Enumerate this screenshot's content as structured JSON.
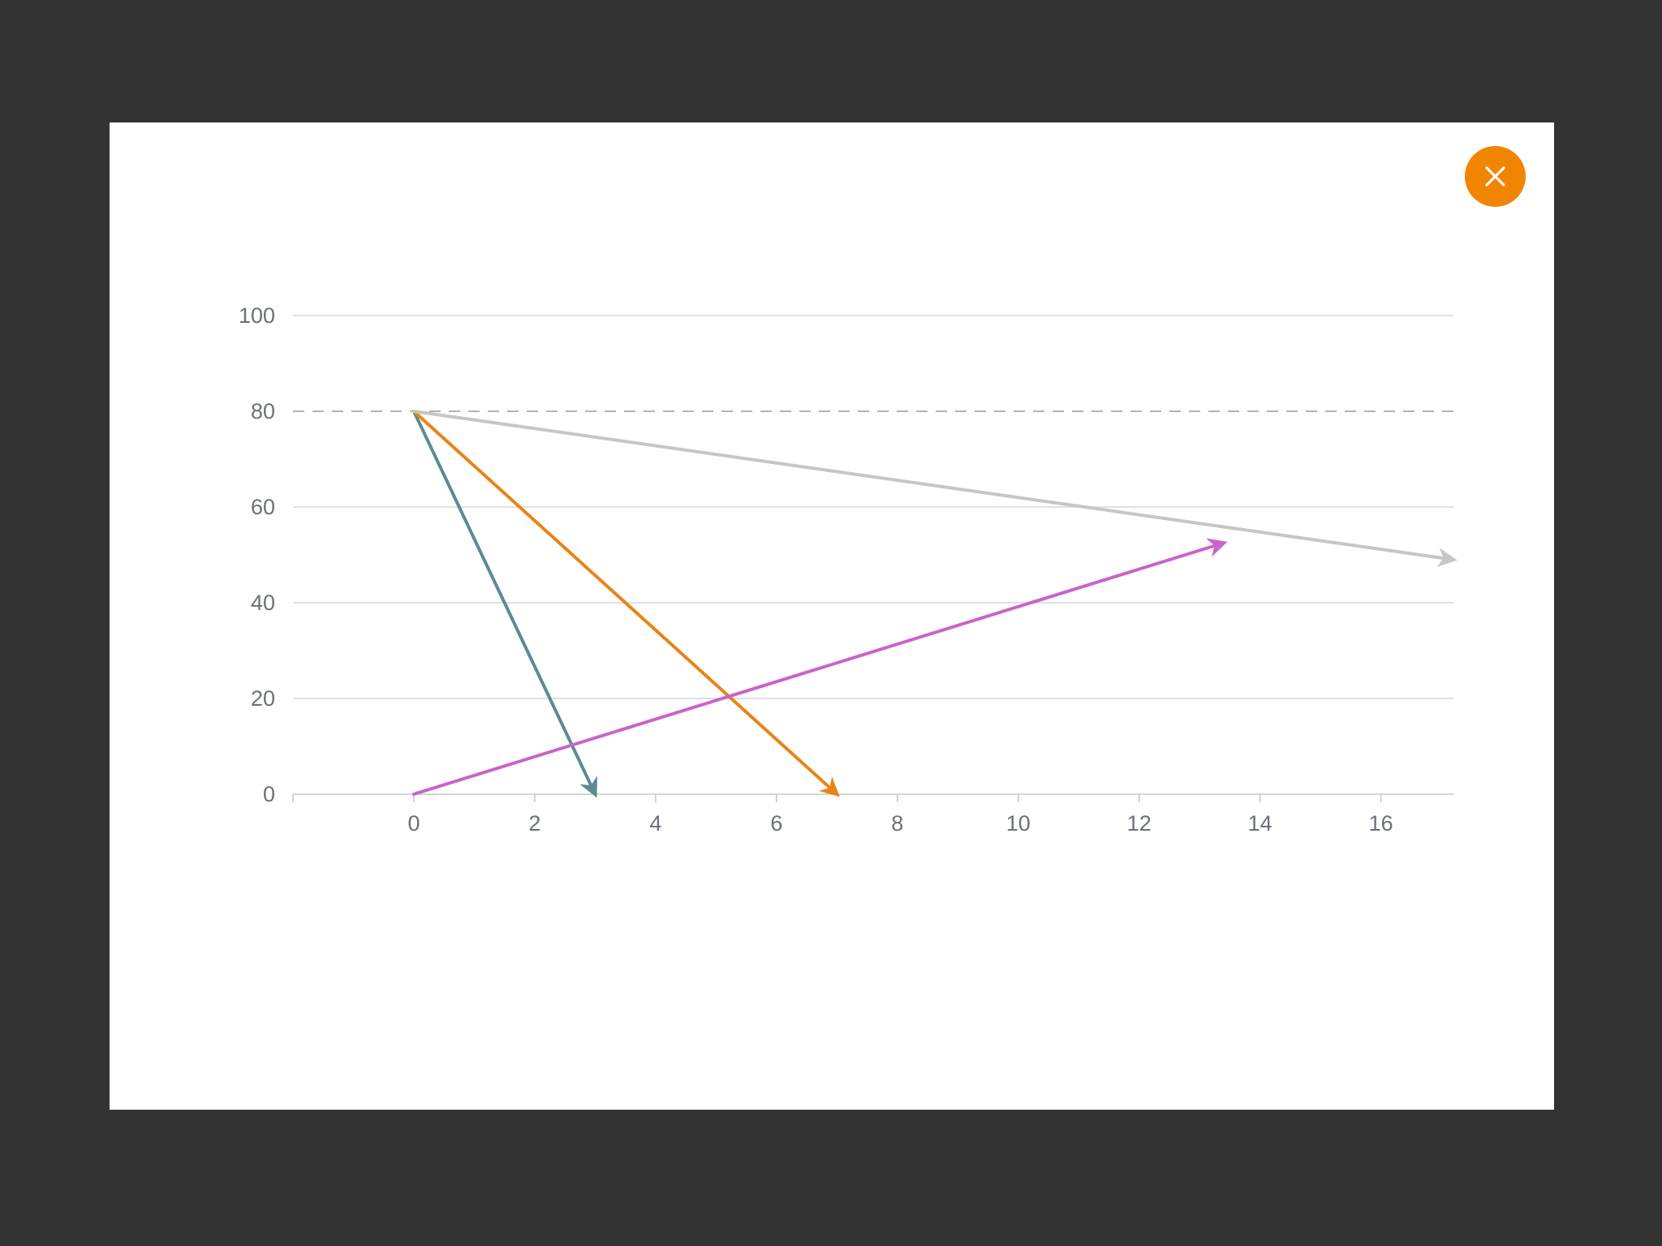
{
  "close_button": {
    "color": "#f28500",
    "icon": "close-icon"
  },
  "chart_data": {
    "type": "line",
    "x_ticks": [
      0,
      2,
      4,
      6,
      8,
      10,
      12,
      14,
      16
    ],
    "y_ticks": [
      0,
      20,
      40,
      60,
      80,
      100
    ],
    "xlim": [
      -2,
      17.2
    ],
    "ylim": [
      0,
      100
    ],
    "grid": true,
    "reference_line": {
      "y": 80,
      "style": "dashed",
      "color": "#999999"
    },
    "series": [
      {
        "color": "#5b8a93",
        "x": [
          0,
          3
        ],
        "y": [
          80,
          0
        ],
        "arrow": true
      },
      {
        "color": "#ea8315",
        "x": [
          0,
          7
        ],
        "y": [
          80,
          0
        ],
        "arrow": true
      },
      {
        "color": "#c6c6c6",
        "x": [
          0,
          17.2
        ],
        "y": [
          80,
          49
        ],
        "arrow": true
      },
      {
        "color": "#c963cb",
        "x": [
          0,
          13.4
        ],
        "y": [
          0,
          52.5
        ],
        "arrow": true
      }
    ]
  }
}
